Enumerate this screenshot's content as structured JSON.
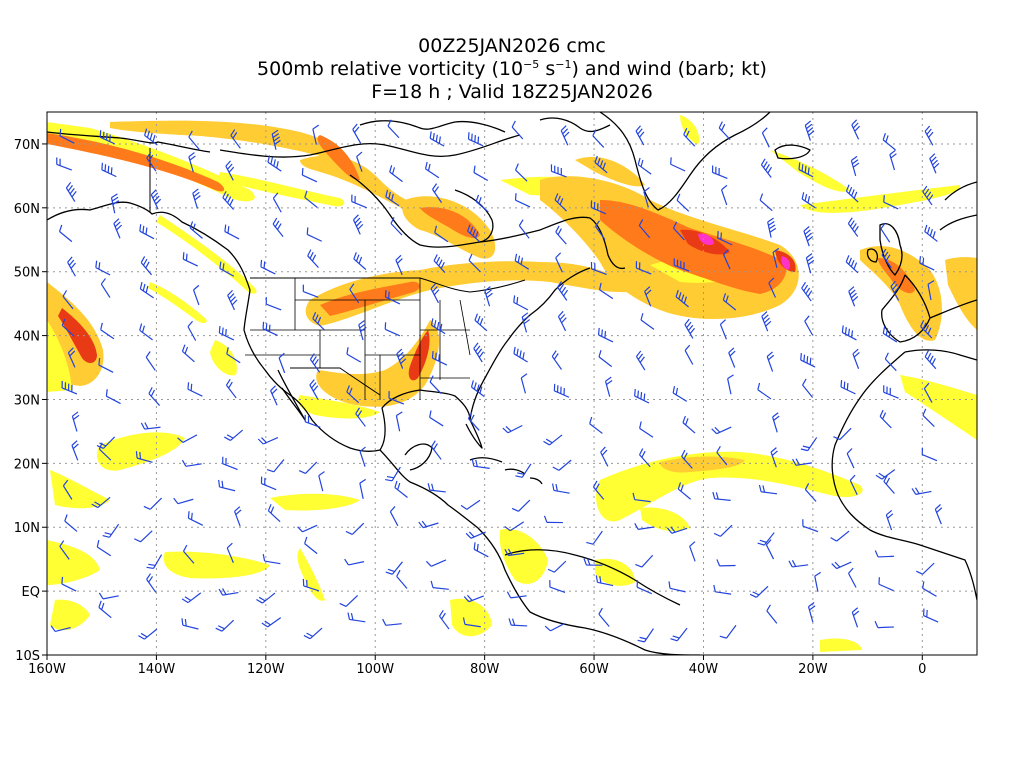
{
  "title": {
    "line1": "00Z25JAN2026 cmc",
    "line2_prefix": "500mb relative vorticity (10",
    "line2_exp1": "−5",
    "line2_mid": " s",
    "line2_exp2": "−1",
    "line2_suffix": ") and wind (barb; kt)",
    "line3": "F=18 h ; Valid 18Z25JAN2026"
  },
  "axes": {
    "lon_labels": [
      "160W",
      "140W",
      "120W",
      "100W",
      "80W",
      "60W",
      "40W",
      "20W",
      "0"
    ],
    "lat_labels": [
      "70N",
      "60N",
      "50N",
      "40N",
      "30N",
      "20N",
      "10N",
      "EQ",
      "10S"
    ],
    "lon_range": [
      -160,
      10
    ],
    "lat_range": [
      -10,
      75
    ],
    "grid": true
  },
  "colors": {
    "shade_low": "#ffff33",
    "shade_mid": "#ffcc33",
    "shade_high": "#ff7a1a",
    "shade_peak": "#e83a14",
    "shade_max": "#ff33cc",
    "barb": "#2244dd",
    "coast": "#000000",
    "grid": "#999999"
  },
  "map": {
    "projection": "cylindrical-equidistant",
    "vorticity_features": [
      {
        "name": "north-pacific-band",
        "lon": -148,
        "lat": 66,
        "level": 2
      },
      {
        "name": "alaska-band",
        "lon": -128,
        "lat": 62,
        "level": 1
      },
      {
        "name": "gulf-alaska-band",
        "lon": -135,
        "lat": 46,
        "level": 1
      },
      {
        "name": "east-pacific-trough",
        "lon": -153,
        "lat": 39,
        "level": 3
      },
      {
        "name": "hudson-bay-band",
        "lon": -95,
        "lat": 62,
        "level": 2
      },
      {
        "name": "labrador-lobe",
        "lon": -70,
        "lat": 57,
        "level": 2
      },
      {
        "name": "great-lakes-band",
        "lon": -95,
        "lat": 47,
        "level": 2
      },
      {
        "name": "plains-trough",
        "lon": -95,
        "lat": 37,
        "level": 3
      },
      {
        "name": "north-atlantic-low",
        "lon": -40,
        "lat": 52,
        "level": 4
      },
      {
        "name": "iberia-band",
        "lon": -10,
        "lat": 48,
        "level": 2
      },
      {
        "name": "subtropical-atlantic-band",
        "lon": -30,
        "lat": 16,
        "level": 1
      },
      {
        "name": "tropical-pacific-patches",
        "lon": -120,
        "lat": 10,
        "level": 1
      }
    ]
  }
}
